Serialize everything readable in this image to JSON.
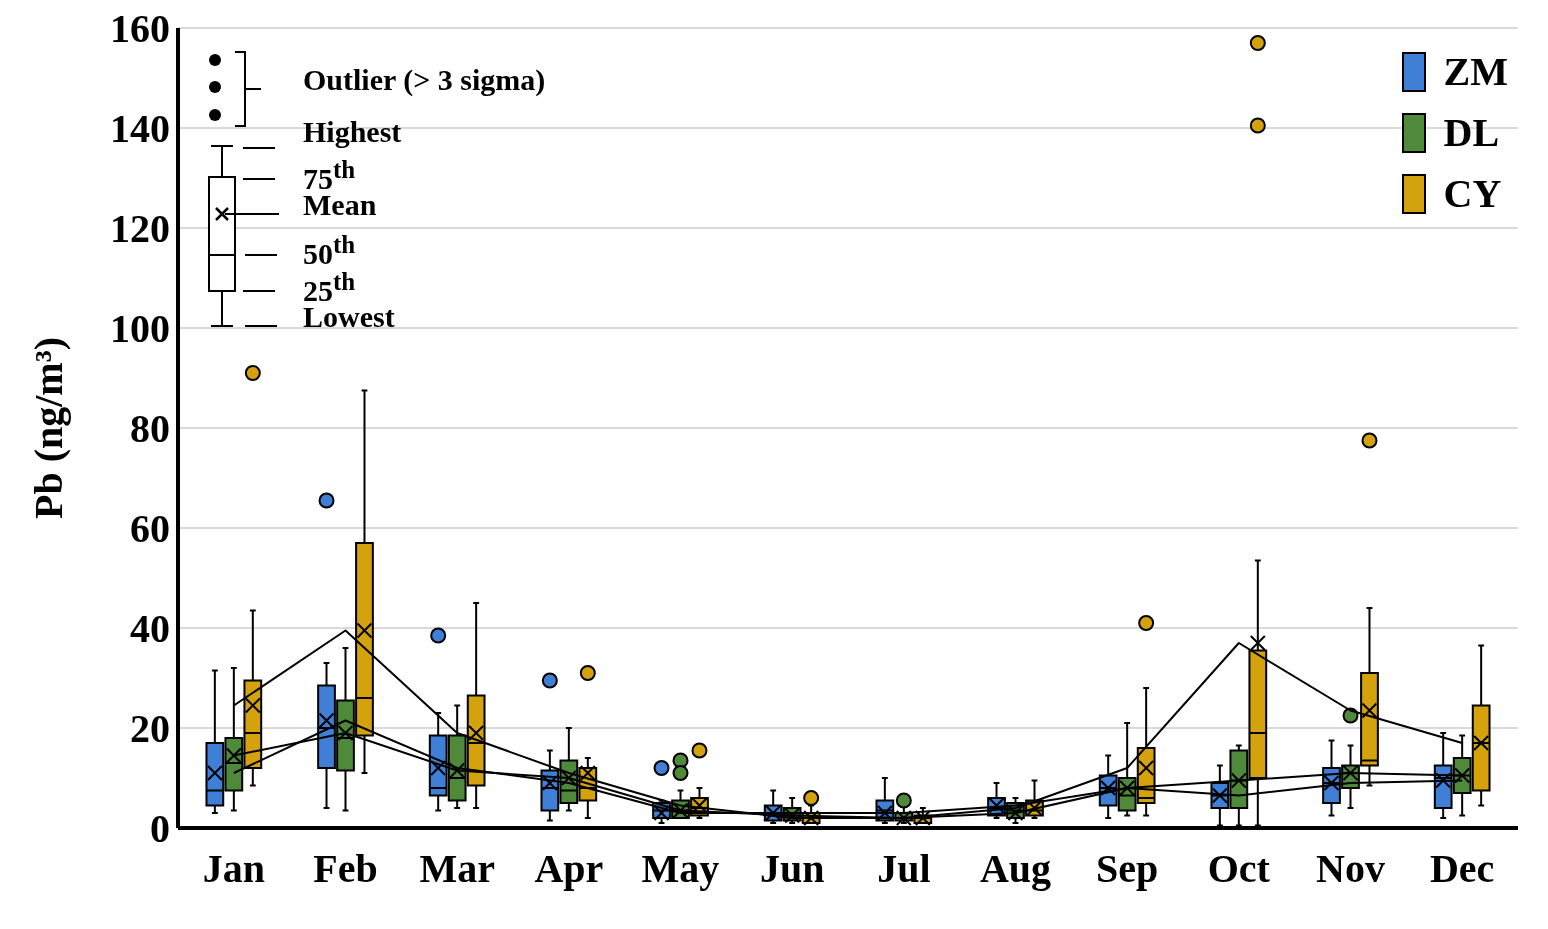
{
  "chart_data": {
    "type": "box",
    "ylabel": "Pb (ng/m³)",
    "categories": [
      "Jan",
      "Feb",
      "Mar",
      "Apr",
      "May",
      "Jun",
      "Jul",
      "Aug",
      "Sep",
      "Oct",
      "Nov",
      "Dec"
    ],
    "ylim": [
      0,
      160
    ],
    "yticks": [
      0,
      20,
      40,
      60,
      80,
      100,
      120,
      140,
      160
    ],
    "grid": "y",
    "legend": "top right",
    "annotations": [
      "Outlier (> 3 sigma)",
      "Highest",
      "75$^{th}$",
      "Mean",
      "50$^{th}$",
      "25$^{th}$",
      "Lowest"
    ],
    "series": [
      {
        "name": "ZM",
        "color": "#3f7fd6",
        "boxes": [
          {
            "low": 3,
            "q1": 4.5,
            "median": 7.5,
            "q3": 17,
            "high": 31.5,
            "mean": 11
          },
          {
            "low": 4,
            "q1": 12,
            "median": 20,
            "q3": 28.5,
            "high": 33,
            "mean": 21.5,
            "outliers": [
              65.5
            ]
          },
          {
            "low": 3.5,
            "q1": 6.5,
            "median": 8,
            "q3": 18.5,
            "high": 23,
            "mean": 12,
            "outliers": [
              38.5
            ]
          },
          {
            "low": 1.5,
            "q1": 3.5,
            "median": 8,
            "q3": 11.5,
            "high": 15.5,
            "mean": 9,
            "outliers": [
              29.5
            ]
          },
          {
            "low": 1,
            "q1": 2,
            "median": 3.5,
            "q3": 5,
            "high": 5.5,
            "mean": 3,
            "outliers": [
              12
            ]
          },
          {
            "low": 1,
            "q1": 1.5,
            "median": 3,
            "q3": 4.5,
            "high": 7.5,
            "mean": 3
          },
          {
            "low": 1,
            "q1": 1.5,
            "median": 3.5,
            "q3": 5.5,
            "high": 10,
            "mean": 3
          },
          {
            "low": 2,
            "q1": 2.5,
            "median": 4,
            "q3": 6,
            "high": 9,
            "mean": 4.5
          },
          {
            "low": 2,
            "q1": 4.5,
            "median": 8,
            "q3": 10.5,
            "high": 14.5,
            "mean": 8
          },
          {
            "low": 0.5,
            "q1": 4,
            "median": 6.5,
            "q3": 9,
            "high": 12.5,
            "mean": 6.5
          },
          {
            "low": 2.5,
            "q1": 5,
            "median": 9,
            "q3": 12,
            "high": 17.5,
            "mean": 9
          },
          {
            "low": 2,
            "q1": 4,
            "median": 10,
            "q3": 12.5,
            "high": 19,
            "mean": 9.5
          }
        ]
      },
      {
        "name": "DL",
        "color": "#4e8a3a",
        "boxes": [
          {
            "low": 3.5,
            "q1": 7.5,
            "median": 13,
            "q3": 18,
            "high": 32,
            "mean": 14.5
          },
          {
            "low": 3.5,
            "q1": 11.5,
            "median": 18,
            "q3": 25.5,
            "high": 36,
            "mean": 19
          },
          {
            "low": 4,
            "q1": 5.5,
            "median": 10,
            "q3": 18.5,
            "high": 24.5,
            "mean": 11.5
          },
          {
            "low": 3.5,
            "q1": 5,
            "median": 7.5,
            "q3": 13.5,
            "high": 20,
            "mean": 10
          },
          {
            "low": 2,
            "q1": 2,
            "median": 3.5,
            "q3": 5.5,
            "high": 7.5,
            "mean": 3.5,
            "outliers": [
              13.5,
              11
            ]
          },
          {
            "low": 1,
            "q1": 1.5,
            "median": 2.5,
            "q3": 4,
            "high": 6,
            "mean": 2.5
          },
          {
            "low": 1,
            "q1": 1.5,
            "median": 2,
            "q3": 3,
            "high": 4.5,
            "mean": 2,
            "outliers": [
              5.5
            ]
          },
          {
            "low": 1,
            "q1": 2,
            "median": 3.5,
            "q3": 5,
            "high": 6,
            "mean": 3
          },
          {
            "low": 2.5,
            "q1": 3.5,
            "median": 6.5,
            "q3": 10,
            "high": 21,
            "mean": 8
          },
          {
            "low": 0.5,
            "q1": 4,
            "median": 9.5,
            "q3": 15.5,
            "high": 16.5,
            "mean": 9.5
          },
          {
            "low": 4,
            "q1": 8,
            "median": 11,
            "q3": 12.5,
            "high": 16.5,
            "mean": 11,
            "outliers": [
              22.5
            ]
          },
          {
            "low": 2.5,
            "q1": 7,
            "median": 10.5,
            "q3": 14,
            "high": 18.5,
            "mean": 10.5
          }
        ]
      },
      {
        "name": "CY",
        "color": "#d4a20c",
        "boxes": [
          {
            "low": 8.5,
            "q1": 12,
            "median": 19,
            "q3": 29.5,
            "high": 43.5,
            "mean": 24.5,
            "outliers": [
              91
            ]
          },
          {
            "low": 11,
            "q1": 18.5,
            "median": 26,
            "q3": 57,
            "high": 87.5,
            "mean": 39.5
          },
          {
            "low": 4,
            "q1": 8.5,
            "median": 17,
            "q3": 26.5,
            "high": 45,
            "mean": 19
          },
          {
            "low": 2,
            "q1": 5.5,
            "median": 8,
            "q3": 12,
            "high": 14,
            "mean": 11,
            "outliers": [
              31
            ]
          },
          {
            "low": 2,
            "q1": 2.5,
            "median": 4,
            "q3": 6,
            "high": 8,
            "mean": 4.5,
            "outliers": [
              15.5
            ]
          },
          {
            "low": 1,
            "q1": 1,
            "median": 2,
            "q3": 3,
            "high": 4.5,
            "mean": 2,
            "outliers": [
              6
            ]
          },
          {
            "low": 1,
            "q1": 1,
            "median": 2,
            "q3": 2.5,
            "high": 4,
            "mean": 2
          },
          {
            "low": 2,
            "q1": 2.5,
            "median": 3.5,
            "q3": 5.5,
            "high": 9.5,
            "mean": 4
          },
          {
            "low": 2.5,
            "q1": 5,
            "median": 6,
            "q3": 16,
            "high": 28,
            "mean": 12,
            "outliers": [
              41
            ]
          },
          {
            "low": 0.5,
            "q1": 10,
            "median": 19,
            "q3": 35.5,
            "high": 53.5,
            "mean": 37,
            "outliers": [
              157,
              140.5
            ]
          },
          {
            "low": 8.5,
            "q1": 12.5,
            "median": 13.5,
            "q3": 31,
            "high": 44,
            "mean": 23.5,
            "outliers": [
              77.5
            ]
          },
          {
            "low": 4.5,
            "q1": 7.5,
            "median": 17,
            "q3": 24.5,
            "high": 36.5,
            "mean": 17
          }
        ]
      },
      {
        "type": "line",
        "color": "#000000",
        "values": [
          11,
          21.5,
          12,
          9,
          3,
          3,
          3,
          4.5,
          8,
          6.5,
          9,
          9.5
        ]
      },
      {
        "type": "line",
        "color": "#000000",
        "values": [
          14.5,
          19,
          11.5,
          10,
          3.5,
          2.5,
          2,
          3,
          8,
          9.5,
          11,
          10.5
        ]
      },
      {
        "type": "line",
        "color": "#000000",
        "values": [
          24.5,
          39.5,
          19,
          11,
          4.5,
          2,
          2,
          4,
          12,
          37,
          23.5,
          17
        ]
      }
    ]
  }
}
